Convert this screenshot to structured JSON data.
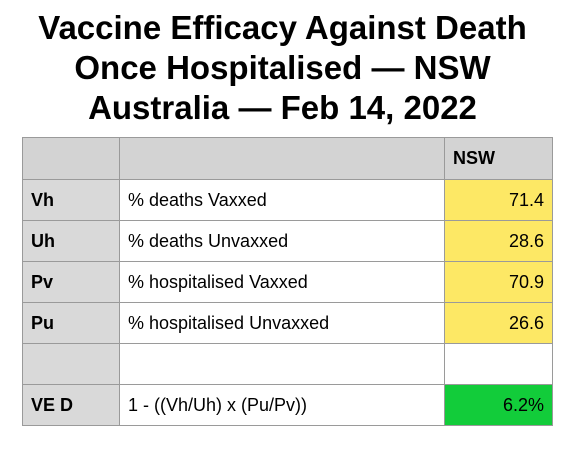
{
  "title": {
    "line1": "Vaccine Efficacy Against Death",
    "line2": "Once Hospitalised — NSW",
    "line3": "Australia — Feb 14, 2022"
  },
  "table": {
    "header": {
      "col1": "",
      "col2": "",
      "col3": "NSW"
    },
    "rows": [
      {
        "label": "Vh",
        "description": "% deaths Vaxxed",
        "value": "71.4"
      },
      {
        "label": "Uh",
        "description": "% deaths Unvaxxed",
        "value": "28.6"
      },
      {
        "label": "Pv",
        "description": "% hospitalised Vaxxed",
        "value": "70.9"
      },
      {
        "label": "Pu",
        "description": "% hospitalised Unvaxxed",
        "value": "26.6"
      },
      {
        "label": "",
        "description": "",
        "value": ""
      },
      {
        "label": "VE D",
        "description": "1 - ((Vh/Uh) x (Pu/Pv))",
        "value": "6.2%"
      }
    ]
  },
  "colors": {
    "header_bg": "#d3d3d3",
    "label_bg": "#d9d9d9",
    "value_highlight": "#fde865",
    "result_highlight": "#12cc3a"
  }
}
